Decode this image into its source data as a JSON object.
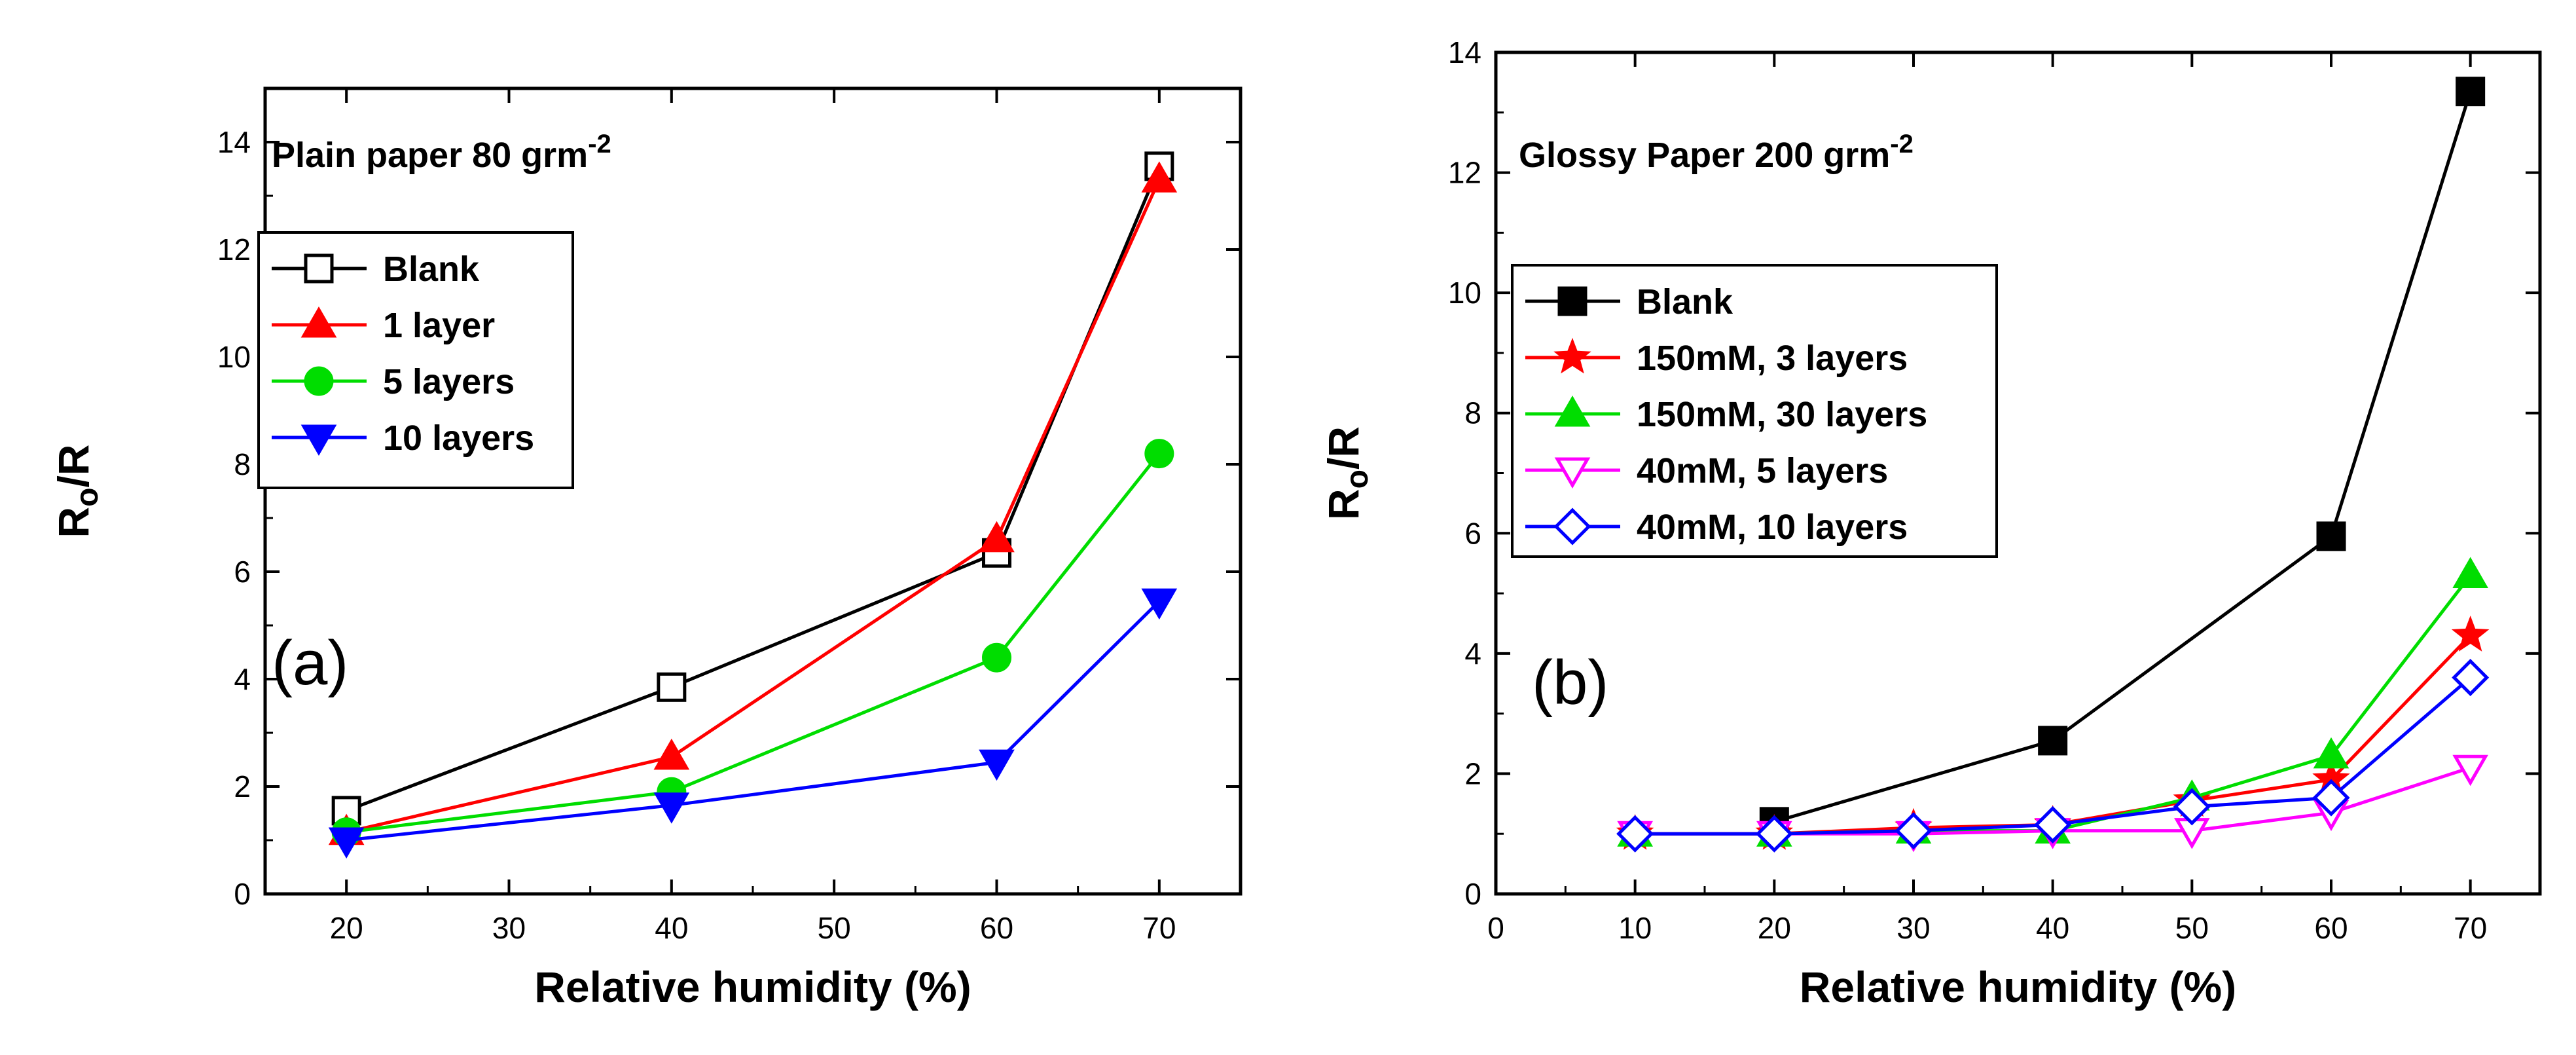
{
  "chart_data": [
    {
      "panel": "a",
      "type": "line",
      "title": "Plain paper 80 grm",
      "title_superscript": "-2",
      "panel_label": "(a)",
      "xlabel": "Relative humidity (%)",
      "ylabel_main": "R",
      "ylabel_sub": "o",
      "ylabel_rest": "/R",
      "xlim": [
        15,
        75
      ],
      "ylim": [
        0,
        15
      ],
      "xticks": [
        20,
        30,
        40,
        50,
        60,
        70
      ],
      "yticks": [
        0,
        2,
        4,
        6,
        8,
        10,
        12,
        14
      ],
      "legend_position": "upper-left",
      "series": [
        {
          "name": "Blank",
          "color": "#000000",
          "marker": "square-open",
          "x": [
            20,
            40,
            60,
            70
          ],
          "y": [
            1.55,
            3.85,
            6.35,
            13.55
          ]
        },
        {
          "name": "1 layer",
          "color": "#ff0000",
          "marker": "triangle-up-filled",
          "x": [
            20,
            40,
            60,
            70
          ],
          "y": [
            1.15,
            2.55,
            6.6,
            13.3
          ]
        },
        {
          "name": "5 layers",
          "color": "#00dd00",
          "marker": "circle-filled",
          "x": [
            20,
            40,
            60,
            70
          ],
          "y": [
            1.15,
            1.9,
            4.4,
            8.2
          ]
        },
        {
          "name": "10 layers",
          "color": "#0000ff",
          "marker": "triangle-down-filled",
          "x": [
            20,
            40,
            60,
            70
          ],
          "y": [
            1.0,
            1.65,
            2.45,
            5.45
          ]
        }
      ]
    },
    {
      "panel": "b",
      "type": "line",
      "title": "Glossy Paper 200 grm",
      "title_superscript": "-2",
      "panel_label": "(b)",
      "xlabel": "Relative humidity (%)",
      "ylabel_main": "R",
      "ylabel_sub": "o",
      "ylabel_rest": "/R",
      "xlim": [
        0,
        75
      ],
      "ylim": [
        0,
        14
      ],
      "xticks": [
        0,
        10,
        20,
        30,
        40,
        50,
        60,
        70
      ],
      "yticks": [
        0,
        2,
        4,
        6,
        8,
        10,
        12,
        14
      ],
      "legend_position": "middle-left",
      "series": [
        {
          "name": "Blank",
          "color": "#000000",
          "marker": "square-filled",
          "x": [
            20,
            40,
            60,
            70
          ],
          "y": [
            1.2,
            2.55,
            5.95,
            13.35
          ]
        },
        {
          "name": "150mM, 3 layers",
          "color": "#ff0000",
          "marker": "star-filled",
          "x": [
            10,
            20,
            30,
            40,
            50,
            60,
            70
          ],
          "y": [
            1.0,
            1.0,
            1.1,
            1.15,
            1.55,
            1.9,
            4.3
          ]
        },
        {
          "name": "150mM, 30 layers",
          "color": "#00dd00",
          "marker": "triangle-up-filled",
          "x": [
            10,
            20,
            30,
            40,
            50,
            60,
            70
          ],
          "y": [
            1.0,
            1.0,
            1.05,
            1.05,
            1.6,
            2.3,
            5.3
          ]
        },
        {
          "name": "40mM, 5 layers",
          "color": "#ff00ff",
          "marker": "triangle-down-open",
          "x": [
            10,
            20,
            30,
            40,
            50,
            60,
            70
          ],
          "y": [
            1.0,
            1.0,
            1.0,
            1.05,
            1.05,
            1.35,
            2.1
          ]
        },
        {
          "name": "40mM, 10 layers",
          "color": "#0000ff",
          "marker": "diamond-open",
          "x": [
            10,
            20,
            30,
            40,
            50,
            60,
            70
          ],
          "y": [
            1.0,
            1.0,
            1.05,
            1.15,
            1.45,
            1.6,
            3.6
          ]
        }
      ]
    }
  ]
}
